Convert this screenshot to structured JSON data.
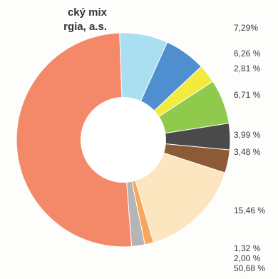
{
  "chart_data": {
    "type": "pie",
    "donut": true,
    "title_lines": [
      "cký mix",
      "rgia, a.s."
    ],
    "slices": [
      {
        "label": "7,29%",
        "value": 7.29,
        "color": "#a9dff0"
      },
      {
        "label": "6,26 %",
        "value": 6.26,
        "color": "#4f8fd0"
      },
      {
        "label": "2,81 %",
        "value": 2.81,
        "color": "#f2ea3c"
      },
      {
        "label": "6,71 %",
        "value": 6.71,
        "color": "#8fca4c"
      },
      {
        "label": "3,99 %",
        "value": 3.99,
        "color": "#4a4a4a"
      },
      {
        "label": "3,48 %",
        "value": 3.48,
        "color": "#8c5a34"
      },
      {
        "label": "15,46 %",
        "value": 15.46,
        "color": "#fbe6bf"
      },
      {
        "label": "1,32 %",
        "value": 1.32,
        "color": "#f7a65c"
      },
      {
        "label": "2,00 %",
        "value": 2.0,
        "color": "#b5b5b5"
      },
      {
        "label": "50,68 %",
        "value": 50.68,
        "color": "#f4896a"
      }
    ]
  }
}
